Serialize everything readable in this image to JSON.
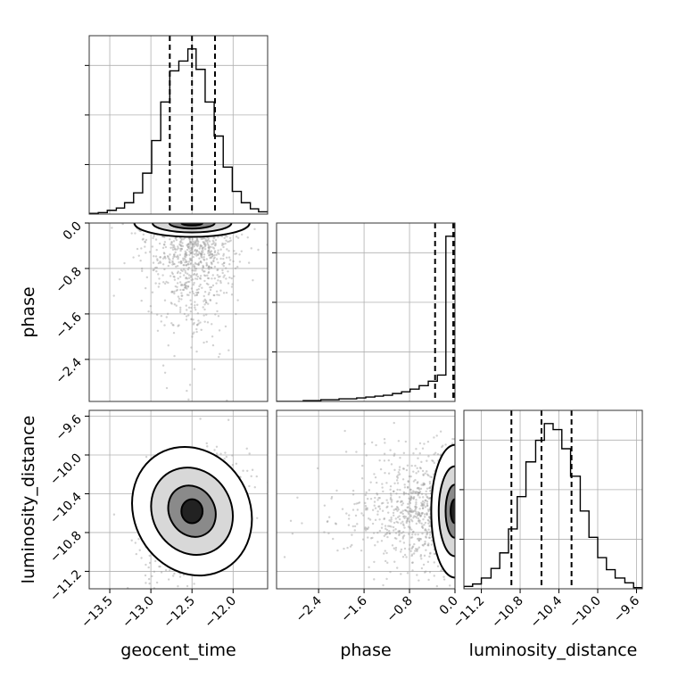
{
  "chart_data": {
    "type": "corner",
    "parameters": [
      "geocent_time",
      "phase",
      "luminosity_distance"
    ],
    "axis_ranges": {
      "geocent_time": [
        -13.75,
        -11.58
      ],
      "phase": [
        -3.14,
        0.0
      ],
      "luminosity_distance": [
        -11.38,
        -9.54
      ]
    },
    "ticks": {
      "geocent_time": [
        -13.5,
        -13.0,
        -12.5,
        -12.0
      ],
      "phase": [
        -2.4,
        -1.6,
        -0.8,
        0.0
      ],
      "luminosity_distance": [
        -11.2,
        -10.8,
        -10.4,
        -10.0,
        -9.6
      ]
    },
    "tick_labels": {
      "geocent_time": [
        "−13.5",
        "−13.0",
        "−12.5",
        "−12.0"
      ],
      "phase": [
        "−2.4",
        "−1.6",
        "−0.8",
        "0.0"
      ],
      "luminosity_distance": [
        "−11.2",
        "−10.8",
        "−10.4",
        "−10.0",
        "−9.6"
      ]
    },
    "quantiles": {
      "geocent_time": [
        -12.77,
        -12.5,
        -12.22
      ],
      "phase": [
        -0.35,
        -0.03,
        0.0
      ],
      "luminosity_distance": [
        -10.89,
        -10.58,
        -10.27
      ]
    },
    "histograms": {
      "geocent_time": {
        "bins": [
          -13.75,
          -13.64,
          -13.53,
          -13.42,
          -13.32,
          -13.21,
          -13.1,
          -12.99,
          -12.88,
          -12.77,
          -12.66,
          -12.55,
          -12.45,
          -12.34,
          -12.23,
          -12.12,
          -12.01,
          -11.9,
          -11.79,
          -11.69,
          -11.58
        ],
        "counts": [
          1,
          2,
          5,
          8,
          15,
          28,
          54,
          97,
          148,
          189,
          202,
          218,
          191,
          148,
          103,
          62,
          30,
          15,
          7,
          3
        ]
      },
      "phase": {
        "bins": [
          -3.14,
          -2.98,
          -2.83,
          -2.67,
          -2.51,
          -2.36,
          -2.2,
          -2.04,
          -1.88,
          -1.73,
          -1.57,
          -1.41,
          -1.26,
          -1.1,
          -0.94,
          -0.79,
          -0.63,
          -0.47,
          -0.31,
          -0.16,
          0.0
        ],
        "counts": [
          0,
          0,
          0,
          1,
          1,
          2,
          2,
          3,
          3,
          4,
          5,
          6,
          7,
          9,
          11,
          14,
          18,
          23,
          30,
          188
        ]
      },
      "luminosity_distance": {
        "bins": [
          -11.38,
          -11.29,
          -11.2,
          -11.1,
          -11.01,
          -10.92,
          -10.83,
          -10.74,
          -10.64,
          -10.55,
          -10.46,
          -10.37,
          -10.28,
          -10.18,
          -10.09,
          -10.0,
          -9.91,
          -9.82,
          -9.72,
          -9.63,
          -9.54
        ],
        "counts": [
          2,
          4,
          9,
          17,
          30,
          50,
          77,
          106,
          124,
          138,
          133,
          117,
          94,
          65,
          43,
          26,
          16,
          9,
          5,
          1
        ]
      }
    },
    "xlabels": [
      "geocent_time",
      "phase",
      "luminosity_distance"
    ],
    "ylabels": [
      "",
      "phase",
      "luminosity_distance"
    ],
    "grid": true
  }
}
